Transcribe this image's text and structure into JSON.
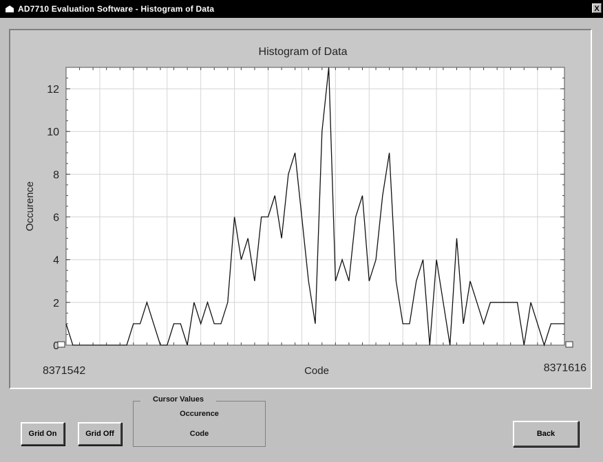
{
  "window": {
    "title": "AD7710 Evaluation Software -  Histogram of Data",
    "close_label": "X"
  },
  "chart_data": {
    "type": "line",
    "title": "Histogram of Data",
    "xlabel": "Code",
    "ylabel": "Occurence",
    "x_start_label": "8371542",
    "x_end_label": "8371616",
    "xlim": [
      8371542,
      8371616
    ],
    "ylim": [
      0,
      13
    ],
    "yticks": [
      "0",
      "2",
      "4",
      "6",
      "8",
      "10",
      "12"
    ],
    "grid": true,
    "x": [
      8371542,
      8371543,
      8371544,
      8371545,
      8371546,
      8371547,
      8371548,
      8371549,
      8371550,
      8371551,
      8371552,
      8371553,
      8371554,
      8371555,
      8371556,
      8371557,
      8371558,
      8371559,
      8371560,
      8371561,
      8371562,
      8371563,
      8371564,
      8371565,
      8371566,
      8371567,
      8371568,
      8371569,
      8371570,
      8371571,
      8371572,
      8371573,
      8371574,
      8371575,
      8371576,
      8371577,
      8371578,
      8371579,
      8371580,
      8371581,
      8371582,
      8371583,
      8371584,
      8371585,
      8371586,
      8371587,
      8371588,
      8371589,
      8371590,
      8371591,
      8371592,
      8371593,
      8371594,
      8371595,
      8371596,
      8371597,
      8371598,
      8371599,
      8371600,
      8371601,
      8371602,
      8371603,
      8371604,
      8371605,
      8371606,
      8371607,
      8371608,
      8371609,
      8371610,
      8371611,
      8371612,
      8371613,
      8371614,
      8371615,
      8371616
    ],
    "values": [
      1,
      0,
      0,
      0,
      0,
      0,
      0,
      0,
      0,
      0,
      1,
      1,
      2,
      1,
      0,
      0,
      1,
      1,
      0,
      2,
      1,
      2,
      1,
      1,
      2,
      6,
      4,
      5,
      3,
      6,
      6,
      7,
      5,
      8,
      9,
      6,
      3,
      1,
      10,
      13,
      3,
      4,
      3,
      6,
      7,
      3,
      4,
      7,
      9,
      3,
      1,
      1,
      3,
      4,
      0,
      4,
      2,
      0,
      5,
      1,
      3,
      2,
      1,
      2,
      2,
      2,
      2,
      2,
      0,
      2,
      1,
      0,
      1,
      1,
      1
    ]
  },
  "cursor_values": {
    "title": "Cursor Values",
    "occurrence_label": "Occurence",
    "code_label": "Code"
  },
  "buttons": {
    "grid_on": "Grid On",
    "grid_off": "Grid Off",
    "back": "Back"
  }
}
